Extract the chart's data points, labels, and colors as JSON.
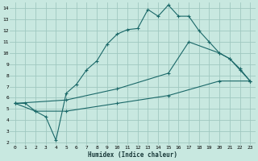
{
  "xlabel": "Humidex (Indice chaleur)",
  "bg_color": "#c8e8e0",
  "grid_color": "#a0c8c0",
  "line_color": "#1a6868",
  "xlim": [
    -0.5,
    23.5
  ],
  "ylim": [
    1.8,
    14.5
  ],
  "xticks": [
    0,
    1,
    2,
    3,
    4,
    5,
    6,
    7,
    8,
    9,
    10,
    11,
    12,
    13,
    14,
    15,
    16,
    17,
    18,
    19,
    20,
    21,
    22,
    23
  ],
  "yticks": [
    2,
    3,
    4,
    5,
    6,
    7,
    8,
    9,
    10,
    11,
    12,
    13,
    14
  ],
  "line1_x": [
    0,
    1,
    2,
    3,
    4,
    5,
    6,
    7,
    8,
    9,
    10,
    11,
    12,
    13,
    14,
    15,
    16,
    17,
    18,
    19,
    20,
    21,
    22,
    23
  ],
  "line1_y": [
    5.5,
    5.5,
    4.8,
    4.3,
    2.2,
    6.4,
    7.2,
    8.5,
    9.3,
    10.8,
    11.7,
    12.1,
    12.2,
    13.9,
    13.3,
    14.3,
    13.3,
    13.3,
    12.0,
    11.0,
    10.0,
    9.5,
    8.5,
    7.5
  ],
  "line2_x": [
    0,
    5,
    10,
    15,
    17,
    20,
    21,
    22,
    23
  ],
  "line2_y": [
    5.5,
    5.8,
    6.8,
    8.2,
    11.0,
    10.0,
    9.5,
    8.6,
    7.5
  ],
  "line3_x": [
    0,
    2,
    5,
    10,
    15,
    20,
    23
  ],
  "line3_y": [
    5.5,
    4.8,
    4.8,
    5.5,
    6.2,
    7.5,
    7.5
  ]
}
